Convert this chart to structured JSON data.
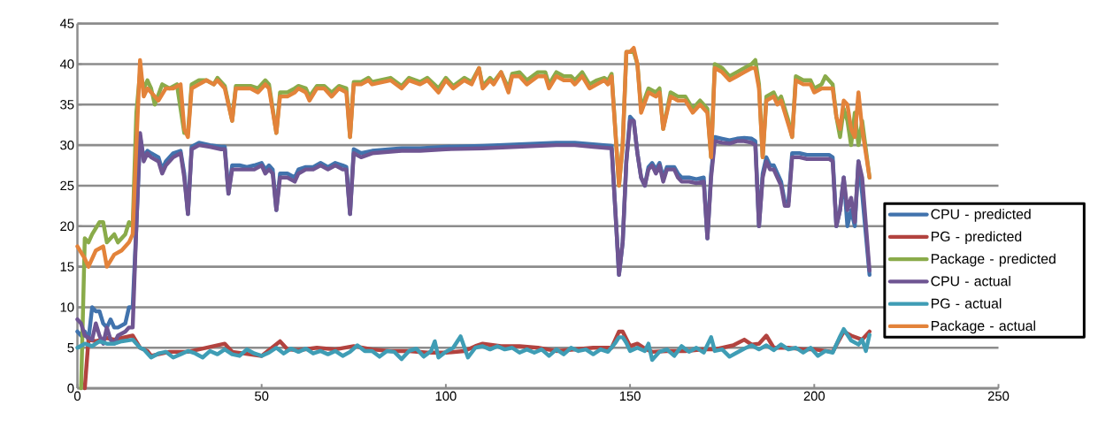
{
  "chart_data": {
    "type": "line",
    "xlim": [
      0,
      250
    ],
    "ylim": [
      0,
      45
    ],
    "xticks": [
      0,
      50,
      100,
      150,
      200,
      250
    ],
    "yticks": [
      0,
      5,
      10,
      15,
      20,
      25,
      30,
      35,
      40,
      45
    ],
    "grid": "y",
    "legend": "right",
    "marker": "none",
    "line_style": "solid",
    "series": [
      {
        "name": "CPU - predicted",
        "color": "#4173ad",
        "x": [
          0,
          1,
          2,
          3,
          4,
          5,
          6,
          7,
          8,
          9,
          10,
          11,
          13,
          14,
          15,
          16,
          17,
          18,
          19,
          20,
          22,
          23,
          24,
          26,
          28,
          29,
          30,
          31,
          33,
          36,
          39,
          40,
          41,
          42,
          44,
          46,
          48,
          50,
          51,
          52,
          53,
          54,
          55,
          57,
          59,
          60,
          62,
          64,
          66,
          68,
          70,
          72,
          73,
          74,
          75,
          77,
          80,
          85,
          88,
          93,
          100,
          110,
          120,
          130,
          135,
          140,
          145,
          146,
          147,
          148,
          149,
          150,
          151,
          152,
          153,
          154,
          155,
          156,
          157,
          158,
          159,
          160,
          162,
          163,
          164,
          166,
          168,
          170,
          171,
          172,
          173,
          175,
          177,
          179,
          181,
          183,
          184,
          185,
          186,
          187,
          188,
          189,
          190,
          191,
          192,
          193,
          194,
          196,
          198,
          200,
          202,
          204,
          205,
          206,
          207,
          208,
          209,
          210,
          211,
          212,
          213,
          215
        ],
        "values": [
          7,
          6.5,
          7,
          6,
          10,
          9.5,
          9.5,
          8,
          7.5,
          8.5,
          7.5,
          7.5,
          8,
          10,
          10,
          20,
          31,
          28.5,
          29.3,
          29,
          28.5,
          27,
          28,
          29,
          29.3,
          26.5,
          21.5,
          29.8,
          30.3,
          30,
          29.8,
          29.8,
          24,
          27.5,
          27.5,
          27.3,
          27.5,
          27.8,
          27,
          27.5,
          27,
          22,
          26.5,
          26.5,
          26,
          27,
          27.3,
          27.3,
          27.8,
          27.3,
          27.8,
          27.5,
          27.3,
          21.5,
          29.5,
          29,
          29.3,
          29.5,
          29.6,
          29.6,
          29.8,
          29.9,
          30.1,
          30.3,
          30.3,
          30.1,
          29.9,
          22,
          14,
          18,
          28,
          33.5,
          33,
          29,
          26,
          25,
          27.3,
          27.8,
          27,
          27.8,
          26,
          27.3,
          27.3,
          26.5,
          26,
          26,
          25.8,
          26,
          18.5,
          26.5,
          31,
          30.8,
          30.6,
          30.8,
          30.9,
          30.8,
          30.5,
          20,
          26.5,
          28.5,
          27.5,
          27.5,
          26.5,
          25.5,
          23,
          23,
          29,
          29,
          28.8,
          28.8,
          28.8,
          28.8,
          28.5,
          20,
          22,
          26,
          20,
          22,
          20,
          28,
          24,
          14
        ]
      },
      {
        "name": "PG  - predicted",
        "color": "#b2433f",
        "x": [
          2,
          3,
          5,
          8,
          10,
          12,
          15,
          17,
          19,
          20,
          25,
          30,
          40,
          42,
          50,
          55,
          57,
          60,
          65,
          70,
          75,
          80,
          85,
          90,
          95,
          100,
          105,
          108,
          110,
          115,
          120,
          125,
          130,
          135,
          140,
          145,
          147,
          148,
          150,
          152,
          154,
          156,
          160,
          165,
          170,
          173,
          178,
          181,
          183,
          185,
          187,
          189,
          193,
          197,
          200,
          205,
          208,
          210,
          213,
          215
        ],
        "values": [
          0,
          6,
          5.8,
          6.2,
          6,
          6.2,
          6.5,
          5,
          4.6,
          4,
          4.5,
          4.5,
          5.5,
          4.5,
          4,
          5.8,
          4.8,
          4.7,
          5,
          4.8,
          5.2,
          4.8,
          4.6,
          4.6,
          4.4,
          4.4,
          4.6,
          5.2,
          5.5,
          5.2,
          5.2,
          5,
          4.6,
          4.8,
          5,
          5,
          7,
          7,
          5.2,
          5.5,
          4.9,
          4.5,
          4.6,
          4.6,
          4.8,
          4.8,
          5.3,
          6,
          5.4,
          5.5,
          6.5,
          5,
          5,
          4.8,
          4.8,
          4.5,
          7,
          6.5,
          6,
          7
        ]
      },
      {
        "name": "Package - predicted",
        "color": "#8aab4a",
        "x": [
          1,
          2,
          3,
          4,
          6,
          7,
          8,
          10,
          11,
          13,
          14,
          15,
          16,
          17,
          18,
          19,
          20,
          21,
          23,
          25,
          27,
          29,
          30,
          31,
          33,
          35,
          37,
          38,
          40,
          42,
          43,
          45,
          47,
          49,
          51,
          52,
          54,
          55,
          57,
          59,
          60,
          62,
          63,
          65,
          67,
          69,
          71,
          73,
          74,
          75,
          77,
          79,
          80,
          85,
          88,
          90,
          93,
          95,
          98,
          100,
          102,
          105,
          107,
          109,
          110,
          112,
          113,
          115,
          117,
          118,
          120,
          122,
          125,
          127,
          128,
          130,
          132,
          134,
          135,
          137,
          139,
          141,
          143,
          144,
          145,
          147,
          148,
          149,
          150,
          151,
          152,
          153,
          155,
          157,
          158,
          159,
          161,
          163,
          165,
          167,
          169,
          171,
          172,
          173,
          175,
          177,
          179,
          181,
          183,
          184,
          185,
          186,
          187,
          189,
          190,
          191,
          193,
          194,
          195,
          197,
          199,
          200,
          202,
          203,
          205,
          206,
          207,
          208,
          209,
          210,
          211,
          212,
          213,
          215
        ],
        "values": [
          0,
          18.5,
          18,
          19,
          20.5,
          20.5,
          18,
          19,
          18,
          19,
          20.5,
          20,
          34,
          39,
          37,
          38,
          37,
          35,
          37.5,
          37,
          37.5,
          31.5,
          31.5,
          37.5,
          38,
          38,
          37.5,
          38.3,
          37.3,
          33,
          37.3,
          37.3,
          37.3,
          37,
          38,
          37.5,
          31.5,
          36.5,
          36.5,
          37,
          37.3,
          37,
          36,
          37.3,
          37.3,
          36.5,
          37.3,
          37,
          31,
          37.8,
          37.8,
          38.3,
          37.8,
          38.3,
          37.3,
          38.3,
          37.8,
          38.3,
          37,
          38.3,
          37.3,
          38.3,
          37.8,
          39.5,
          37.3,
          38.3,
          37.8,
          39,
          37,
          38.8,
          39,
          38,
          39,
          39,
          37.5,
          39,
          38.5,
          38.5,
          38,
          39,
          37.5,
          38,
          38.3,
          38,
          38.8,
          25,
          30,
          41.5,
          41.5,
          41.5,
          40,
          34.5,
          37,
          36.5,
          37,
          32,
          36.5,
          36,
          36,
          34.5,
          35.5,
          34.5,
          28.5,
          40,
          39.5,
          38.5,
          39,
          39.5,
          40,
          40.5,
          37.5,
          28.5,
          36,
          36.5,
          35.5,
          36,
          33,
          31,
          38.5,
          38,
          38,
          37,
          37.5,
          38.5,
          37.5,
          33.5,
          31,
          34.5,
          33,
          30,
          34,
          30,
          33,
          26
        ]
      },
      {
        "name": "CPU - actual",
        "color": "#6f5592",
        "x": [
          0,
          1,
          2,
          4,
          5,
          6,
          7,
          8,
          9,
          10,
          11,
          13,
          14,
          15,
          16,
          17,
          18,
          19,
          20,
          22,
          23,
          24,
          26,
          28,
          29,
          30,
          31,
          33,
          36,
          39,
          40,
          41,
          42,
          44,
          46,
          48,
          50,
          51,
          52,
          53,
          54,
          55,
          57,
          59,
          60,
          62,
          64,
          66,
          68,
          70,
          72,
          73,
          74,
          75,
          77,
          80,
          85,
          88,
          93,
          100,
          110,
          120,
          130,
          135,
          140,
          145,
          146,
          147,
          148,
          149,
          150,
          151,
          152,
          153,
          154,
          155,
          156,
          157,
          158,
          159,
          160,
          162,
          163,
          164,
          166,
          168,
          170,
          171,
          172,
          173,
          175,
          177,
          179,
          181,
          183,
          184,
          185,
          186,
          187,
          188,
          189,
          190,
          191,
          192,
          193,
          194,
          196,
          198,
          200,
          202,
          204,
          205,
          206,
          207,
          208,
          209,
          210,
          211,
          212,
          213,
          215
        ],
        "values": [
          8.5,
          8,
          6.5,
          6,
          8,
          6.5,
          5.5,
          7.5,
          6,
          5.5,
          6.5,
          7,
          7.5,
          7.5,
          20,
          31.5,
          28,
          29,
          28.5,
          28,
          26.5,
          27.5,
          28.5,
          29,
          26,
          21.5,
          29.5,
          30,
          29.8,
          29.5,
          29.5,
          24,
          27,
          27,
          27,
          27,
          27.5,
          26.5,
          27,
          26.5,
          22,
          26,
          26,
          25.5,
          26.5,
          27,
          27,
          27.5,
          27,
          27.5,
          27,
          27,
          21.5,
          29,
          28.5,
          29,
          29.2,
          29.3,
          29.3,
          29.5,
          29.6,
          29.8,
          30,
          30,
          29.8,
          29.6,
          22,
          14,
          18,
          28,
          33,
          33,
          29,
          26,
          25,
          27,
          27.5,
          26.5,
          27.5,
          25.5,
          27,
          27,
          26,
          25.5,
          25.5,
          25.3,
          25.5,
          18.5,
          26,
          30.5,
          30.3,
          30.2,
          30.5,
          30.5,
          30.3,
          30,
          20,
          26,
          28,
          27,
          27,
          26,
          25,
          22.5,
          22.5,
          28.5,
          28.5,
          28.3,
          28.3,
          28.3,
          28.3,
          28,
          20,
          22,
          26,
          22,
          23.5,
          20.5,
          28,
          26,
          14.5
        ]
      },
      {
        "name": "PG - actual",
        "color": "#3f9db5",
        "x": [
          0,
          2,
          4,
          6,
          8,
          10,
          12,
          15,
          17,
          18,
          20,
          22,
          24,
          26,
          28,
          30,
          32,
          34,
          36,
          38,
          40,
          42,
          44,
          46,
          48,
          50,
          52,
          54,
          56,
          58,
          60,
          62,
          64,
          66,
          68,
          70,
          72,
          74,
          76,
          78,
          80,
          82,
          84,
          86,
          88,
          90,
          92,
          94,
          96,
          97,
          98,
          100,
          102,
          104,
          106,
          108,
          110,
          112,
          114,
          116,
          118,
          120,
          122,
          124,
          126,
          128,
          130,
          132,
          134,
          136,
          138,
          140,
          142,
          144,
          146,
          147,
          148,
          149,
          150,
          152,
          154,
          155,
          156,
          158,
          160,
          162,
          164,
          166,
          168,
          170,
          172,
          173,
          175,
          177,
          179,
          181,
          183,
          185,
          187,
          189,
          191,
          193,
          195,
          197,
          199,
          201,
          203,
          205,
          207,
          208,
          210,
          212,
          213,
          214,
          215
        ],
        "values": [
          5,
          5.5,
          5.2,
          5.8,
          5.5,
          5.5,
          5.8,
          6,
          5,
          4.8,
          3.8,
          4.3,
          4.5,
          3.8,
          4.2,
          4.6,
          4.3,
          3.8,
          4.6,
          4.2,
          4.8,
          4.2,
          4,
          4.8,
          4.3,
          4,
          4.4,
          5,
          4.3,
          4.9,
          4.5,
          4.9,
          4.3,
          4.6,
          4.2,
          4.6,
          4,
          4.5,
          5.3,
          4.6,
          4.6,
          3.9,
          4.6,
          4.5,
          3.6,
          4.6,
          4.9,
          3.9,
          4.6,
          5.8,
          3.8,
          4.5,
          5,
          6.4,
          3.8,
          5,
          5.2,
          4.8,
          5.2,
          4.8,
          5,
          4.4,
          4.8,
          4.4,
          4.8,
          4,
          4.8,
          4.2,
          5,
          4.6,
          4.8,
          4.2,
          4.8,
          4.5,
          5.6,
          6.3,
          6.3,
          5.6,
          4.6,
          5,
          4.6,
          5.5,
          3.5,
          4.5,
          4.8,
          4,
          5.2,
          4.5,
          5,
          4.4,
          6.3,
          4.6,
          4.8,
          3.9,
          4.4,
          4.9,
          5.3,
          4.8,
          5.3,
          4.7,
          5.4,
          4.8,
          5,
          4.4,
          5,
          4,
          4.6,
          4.4,
          6.4,
          7.3,
          5.9,
          5.4,
          6,
          4.6,
          6.6
        ]
      },
      {
        "name": "Package - actual",
        "color": "#e3833a",
        "x": [
          0,
          2,
          3,
          5,
          7,
          8,
          10,
          12,
          14,
          15,
          16,
          17,
          18,
          19,
          20,
          22,
          24,
          26,
          28,
          29,
          30,
          31,
          33,
          35,
          37,
          38,
          40,
          42,
          43,
          45,
          47,
          49,
          51,
          52,
          54,
          55,
          57,
          59,
          60,
          62,
          63,
          65,
          67,
          69,
          71,
          73,
          74,
          75,
          77,
          79,
          80,
          85,
          88,
          90,
          93,
          95,
          98,
          100,
          102,
          105,
          107,
          109,
          110,
          112,
          113,
          115,
          117,
          118,
          120,
          122,
          125,
          127,
          128,
          130,
          132,
          134,
          135,
          137,
          139,
          141,
          143,
          144,
          145,
          147,
          148,
          149,
          150,
          151,
          152,
          153,
          155,
          157,
          158,
          159,
          161,
          163,
          165,
          167,
          169,
          171,
          172,
          173,
          175,
          177,
          179,
          181,
          183,
          184,
          185,
          186,
          187,
          189,
          190,
          191,
          193,
          194,
          195,
          197,
          199,
          200,
          202,
          203,
          205,
          206,
          207,
          208,
          209,
          210,
          211,
          212,
          213,
          215
        ],
        "values": [
          17.5,
          16,
          15,
          17,
          17.5,
          15,
          16.5,
          17,
          18,
          19,
          30,
          40.5,
          36,
          37,
          36.5,
          35.5,
          37,
          37,
          37.5,
          32,
          31,
          37,
          37.5,
          38,
          37.5,
          38,
          37,
          33,
          37,
          37,
          37,
          36.5,
          37.5,
          37,
          31.5,
          36,
          36,
          36.5,
          37,
          36.5,
          35.5,
          37,
          37,
          36,
          37,
          36.5,
          31,
          37.5,
          37.5,
          38,
          37.5,
          38,
          37,
          38,
          37.5,
          38,
          36.5,
          38,
          37,
          38,
          37.5,
          39.5,
          37,
          38,
          37.5,
          39,
          36.5,
          38.5,
          38.5,
          37.5,
          38.5,
          38.5,
          37,
          38.5,
          38,
          38,
          37.5,
          38.5,
          37,
          37.5,
          38,
          37.5,
          38.5,
          25,
          30,
          41.5,
          41.5,
          42,
          40,
          34,
          36.5,
          36,
          36.5,
          32,
          36,
          35.5,
          35.5,
          34,
          35,
          34,
          28.5,
          39.5,
          39,
          38,
          38.5,
          39,
          39.5,
          39.5,
          37,
          28.5,
          35.5,
          36,
          35,
          35.5,
          32.5,
          31,
          38,
          37.5,
          37.5,
          36.5,
          37,
          37,
          37,
          33.5,
          32,
          35.5,
          35,
          32,
          31,
          36.5,
          32,
          26
        ]
      }
    ]
  }
}
